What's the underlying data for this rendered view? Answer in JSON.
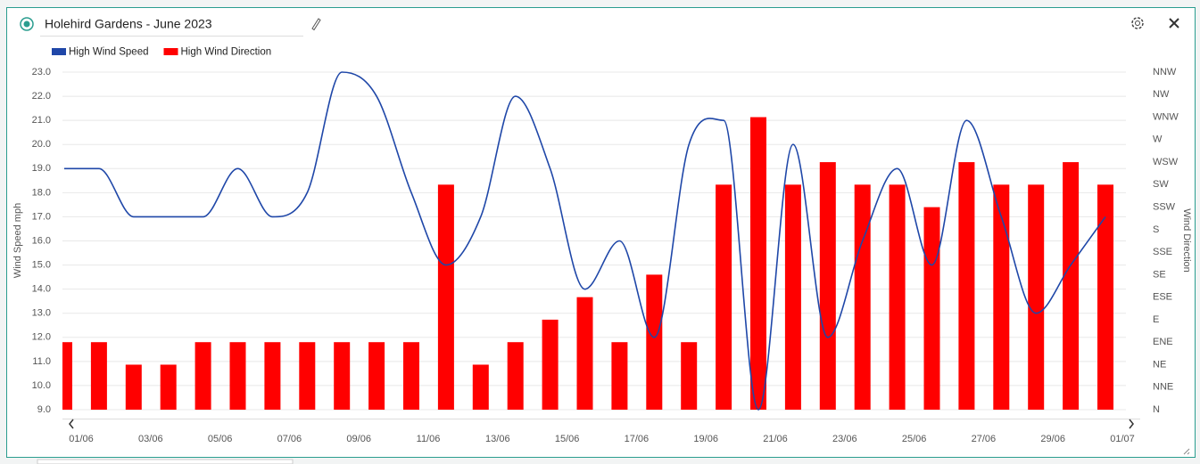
{
  "chart_data": {
    "type": "bar-line",
    "title": "Holehird Gardens - June 2023",
    "y_label": "Wind Speed mph",
    "y2_label": "Wind Direction",
    "categories": [
      "01/06",
      null,
      "03/06",
      null,
      "05/06",
      null,
      "07/06",
      null,
      "09/06",
      null,
      "11/06",
      null,
      "13/06",
      null,
      "15/06",
      null,
      "17/06",
      null,
      "19/06",
      null,
      "21/06",
      null,
      "23/06",
      null,
      "25/06",
      null,
      "27/06",
      null,
      "29/06",
      null,
      "01/07"
    ],
    "ylim": [
      9,
      23
    ],
    "yticks": [
      {
        "value": 9,
        "label": "9.0"
      },
      {
        "value": 10,
        "label": "10.0"
      },
      {
        "value": 11,
        "label": "11.0"
      },
      {
        "value": 12,
        "label": "12.0"
      },
      {
        "value": 13,
        "label": "13.0"
      },
      {
        "value": 14,
        "label": "14.0"
      },
      {
        "value": 15,
        "label": "15.0"
      },
      {
        "value": 16,
        "label": "16.0"
      },
      {
        "value": 17,
        "label": "17.0"
      },
      {
        "value": 18,
        "label": "18.0"
      },
      {
        "value": 19,
        "label": "19.0"
      },
      {
        "value": 20,
        "label": "20.0"
      },
      {
        "value": 21,
        "label": "21.0"
      },
      {
        "value": 22,
        "label": "22.0"
      },
      {
        "value": 23,
        "label": "23.0"
      }
    ],
    "y2lim": [
      0,
      337.5
    ],
    "y2ticks": [
      {
        "value": 0,
        "label": "N"
      },
      {
        "value": 22.5,
        "label": "NNE"
      },
      {
        "value": 45,
        "label": "NE"
      },
      {
        "value": 67.5,
        "label": "ENE"
      },
      {
        "value": 90,
        "label": "E"
      },
      {
        "value": 112.5,
        "label": "ESE"
      },
      {
        "value": 135,
        "label": "SE"
      },
      {
        "value": 157.5,
        "label": "SSE"
      },
      {
        "value": 180,
        "label": "S"
      },
      {
        "value": 202.5,
        "label": "SSW"
      },
      {
        "value": 225,
        "label": "SW"
      },
      {
        "value": 247.5,
        "label": "WSW"
      },
      {
        "value": 270,
        "label": "W"
      },
      {
        "value": 292.5,
        "label": "WNW"
      },
      {
        "value": 315,
        "label": "NW"
      },
      {
        "value": 337.5,
        "label": "NNW"
      }
    ],
    "grid": true,
    "legend": "top-left",
    "series": [
      {
        "name": "High Wind Speed",
        "color": "#1f47a8",
        "kind": "line",
        "axis": "y",
        "values": [
          19,
          19,
          17,
          17,
          17,
          19,
          17,
          18,
          23,
          22,
          18,
          15,
          17,
          22,
          19,
          14,
          16,
          12,
          20,
          21,
          9,
          20,
          12,
          16,
          19,
          15,
          21,
          17,
          13,
          15,
          17
        ]
      },
      {
        "name": "High Wind Direction",
        "color": "#ff0000",
        "kind": "bar",
        "axis": "y2",
        "values": [
          67.5,
          67.5,
          45,
          45,
          67.5,
          67.5,
          67.5,
          67.5,
          67.5,
          67.5,
          67.5,
          225,
          45,
          67.5,
          90,
          112.5,
          67.5,
          135,
          67.5,
          225,
          292.5,
          225,
          247.5,
          225,
          225,
          202.5,
          247.5,
          225,
          225,
          247.5,
          225
        ]
      }
    ]
  }
}
